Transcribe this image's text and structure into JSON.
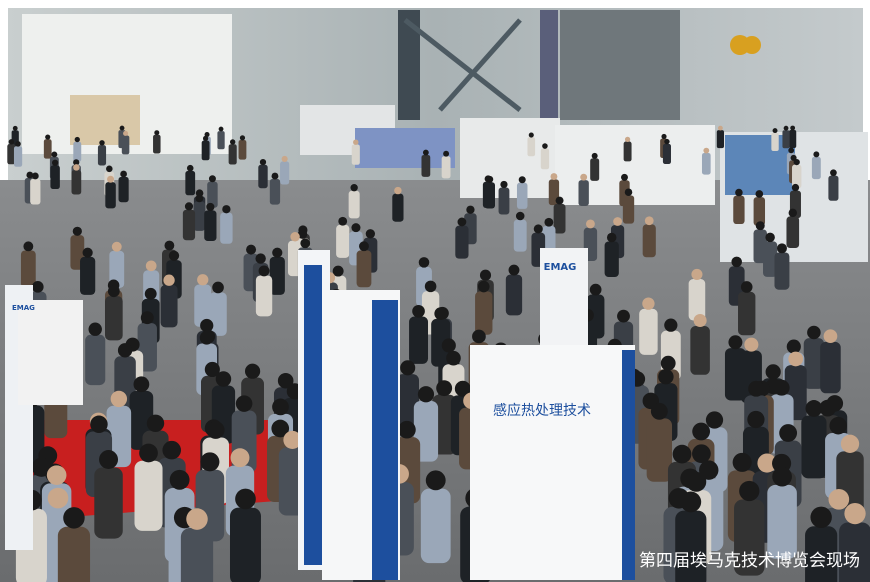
{
  "caption": "第四届埃马克技术博览会现场",
  "sign_text": "感应热处理技术",
  "logos": [
    "EMAG",
    "EMAG"
  ]
}
